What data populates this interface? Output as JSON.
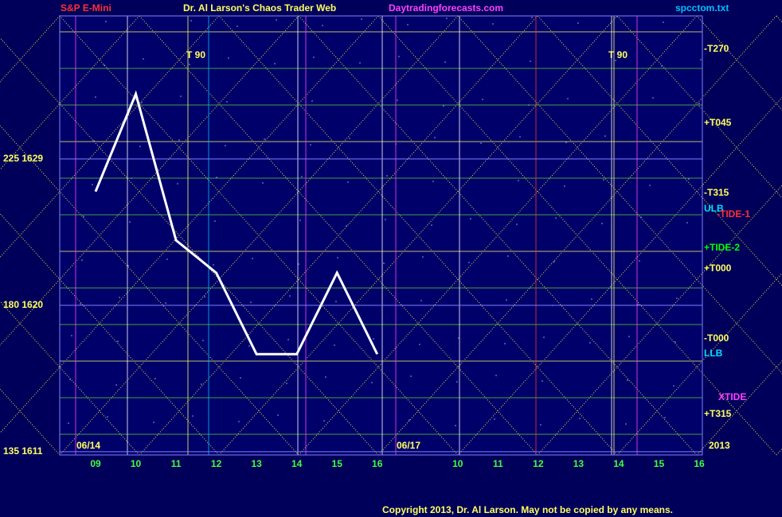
{
  "header": {
    "symbol": "S&P E-Mini",
    "title": "Dr. Al Larson's Chaos Trader Web",
    "site": "Daytradingforecasts.com",
    "file": "spcctom.txt"
  },
  "chart_data": {
    "type": "line",
    "categories": [
      "09",
      "10",
      "11",
      "12",
      "13",
      "14",
      "15",
      "16",
      null,
      "10",
      "11",
      "12",
      "13",
      "14",
      "15",
      "16"
    ],
    "series": [
      {
        "color": "#ffffff",
        "values": [
          1627,
          1633,
          1624,
          1622,
          1617,
          1617,
          1622,
          1617,
          null,
          null,
          null,
          null,
          null,
          null,
          null,
          null
        ]
      }
    ],
    "ylim": [
      1610.8,
      1637.8
    ],
    "yticks": [
      {
        "value": 1611,
        "label": "135  1611"
      },
      {
        "value": 1620,
        "label": "180  1620"
      },
      {
        "value": 1629,
        "label": "225  1629"
      }
    ],
    "grid": true
  },
  "dates": [
    "06/14",
    "06/17"
  ],
  "year": "2013",
  "markers": [
    "T   90",
    "T   90"
  ],
  "right_labels": [
    "-T270",
    "+T045",
    "-T315",
    "ULB",
    "-TIDE-1",
    "+TIDE-2",
    "+T000",
    "-T000",
    "LLB",
    "XTIDE",
    "+T315"
  ],
  "copyright": "Copyright 2013, Dr. Al Larson. May not be copied by any means."
}
